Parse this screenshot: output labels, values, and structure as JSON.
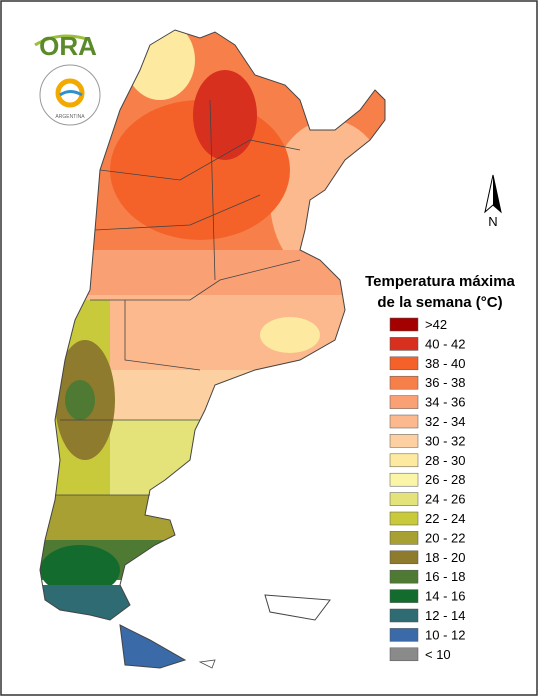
{
  "logo": {
    "text": "ORA"
  },
  "seal": {
    "text": "ARGENTINA"
  },
  "north_arrow": "N",
  "legend": {
    "title_line1": "Temperatura máxima",
    "title_line2": "de la semana (°C)",
    "items": [
      {
        "label": ">42",
        "color": "#a50000"
      },
      {
        "label": "40 - 42",
        "color": "#d7301f"
      },
      {
        "label": "38 - 40",
        "color": "#f4622a"
      },
      {
        "label": "36 - 38",
        "color": "#f7804a"
      },
      {
        "label": "34 - 36",
        "color": "#f9a074"
      },
      {
        "label": "32 - 34",
        "color": "#fbb98d"
      },
      {
        "label": "30 - 32",
        "color": "#fdd0a2"
      },
      {
        "label": "28 - 30",
        "color": "#fde9a0"
      },
      {
        "label": "26 - 28",
        "color": "#fbf5a8"
      },
      {
        "label": "24 - 26",
        "color": "#e3e37a"
      },
      {
        "label": "22 - 24",
        "color": "#c9c93c"
      },
      {
        "label": "20 - 22",
        "color": "#a8a032"
      },
      {
        "label": "18 - 20",
        "color": "#8e7b2e"
      },
      {
        "label": "16 - 18",
        "color": "#4f7a33"
      },
      {
        "label": "14 - 16",
        "color": "#146b2e"
      },
      {
        "label": "12 - 14",
        "color": "#2e6b73"
      },
      {
        "label": "10 - 12",
        "color": "#3a6aa8"
      },
      {
        "label": "< 10",
        "color": "#8a8a8a"
      }
    ]
  }
}
